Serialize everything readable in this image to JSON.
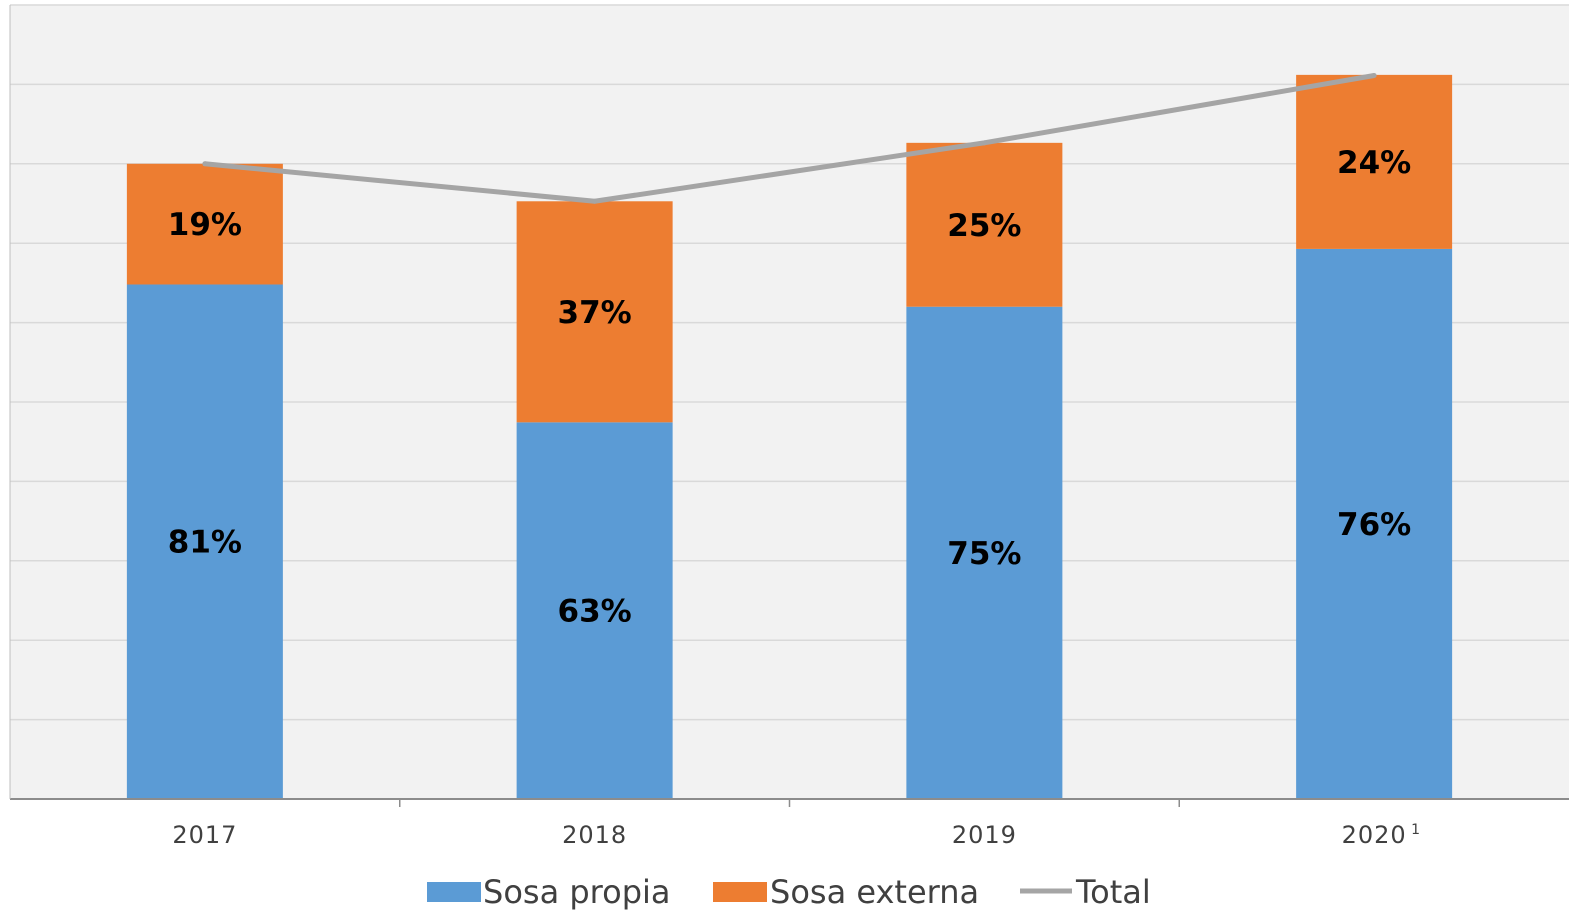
{
  "chart_data": {
    "type": "bar",
    "stacked": true,
    "categories": [
      "2017",
      "2018",
      "2019",
      "2020"
    ],
    "category_superscripts": [
      "",
      "",
      "",
      "1"
    ],
    "series": [
      {
        "name": "Sosa propia",
        "type": "bar",
        "color": "#5B9BD5",
        "values": [
          81,
          59.3,
          77.5,
          86.6
        ],
        "labels": [
          "81%",
          "63%",
          "75%",
          "76%"
        ]
      },
      {
        "name": "Sosa externa",
        "type": "bar",
        "color": "#ED7D31",
        "values": [
          19,
          34.8,
          25.8,
          27.4
        ],
        "labels": [
          "19%",
          "37%",
          "25%",
          "24%"
        ]
      },
      {
        "name": "Total",
        "type": "line",
        "color": "#A5A5A5",
        "values": [
          100,
          94.1,
          103.3,
          113.9
        ]
      }
    ],
    "ylim": [
      0,
      125
    ],
    "grid": true,
    "y_tick_labels_shown": false,
    "legend_position": "bottom"
  }
}
